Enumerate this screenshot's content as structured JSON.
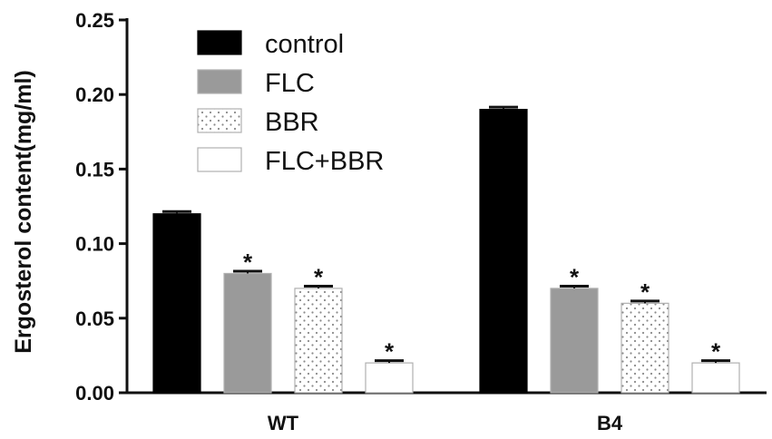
{
  "chart_data": {
    "type": "bar",
    "categories": [
      "WT",
      "B4"
    ],
    "series": [
      {
        "name": "control",
        "values": [
          0.12,
          0.19
        ],
        "errors": [
          0.0015,
          0.0015
        ],
        "marker": "",
        "fill": "#000000",
        "pattern": "solid"
      },
      {
        "name": "FLC",
        "values": [
          0.08,
          0.07
        ],
        "errors": [
          0.0015,
          0.0015
        ],
        "marker": "*",
        "fill": "#9a9a9a",
        "pattern": "solid"
      },
      {
        "name": "BBR",
        "values": [
          0.07,
          0.06
        ],
        "errors": [
          0.0015,
          0.0015
        ],
        "marker": "*",
        "fill": "#ffffff",
        "pattern": "dots"
      },
      {
        "name": "FLC+BBR",
        "values": [
          0.02,
          0.02
        ],
        "errors": [
          0.0015,
          0.0015
        ],
        "marker": "*",
        "fill": "#ffffff",
        "pattern": "solid"
      }
    ],
    "ylabel": "Ergosterol content(mg/ml)",
    "xlabel": "",
    "ylim": [
      0,
      0.25
    ],
    "yticks": [
      "0.00",
      "0.05",
      "0.10",
      "0.15",
      "0.20",
      "0.25"
    ],
    "grid": false,
    "legend": "top-left"
  }
}
